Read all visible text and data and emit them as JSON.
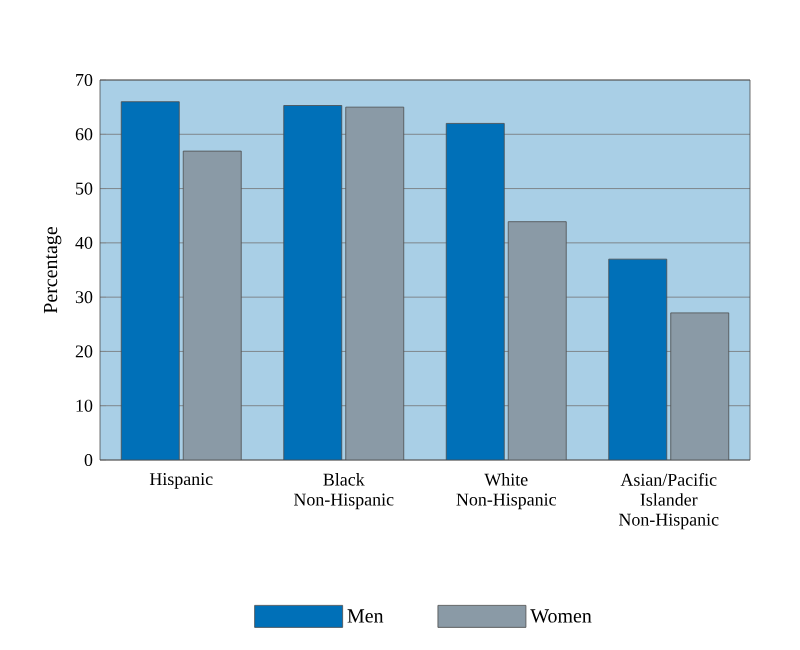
{
  "chart_data": {
    "type": "bar",
    "ylabel": "Percentage",
    "categories": [
      "Hispanic",
      "Black\nNon-Hispanic",
      "White\nNon-Hispanic",
      "Asian/Pacific\nIslander\nNon-Hispanic"
    ],
    "series": [
      {
        "name": "Men",
        "color": "#0070b8",
        "values": [
          66,
          65.3,
          62,
          37
        ]
      },
      {
        "name": "Women",
        "color": "#8a9aa6",
        "values": [
          56.9,
          65,
          43.9,
          27.1
        ]
      }
    ],
    "ylim": [
      0,
      70
    ],
    "yticks": [
      0,
      10,
      20,
      30,
      40,
      50,
      60,
      70
    ],
    "grid": "y",
    "legend": "bottom"
  }
}
